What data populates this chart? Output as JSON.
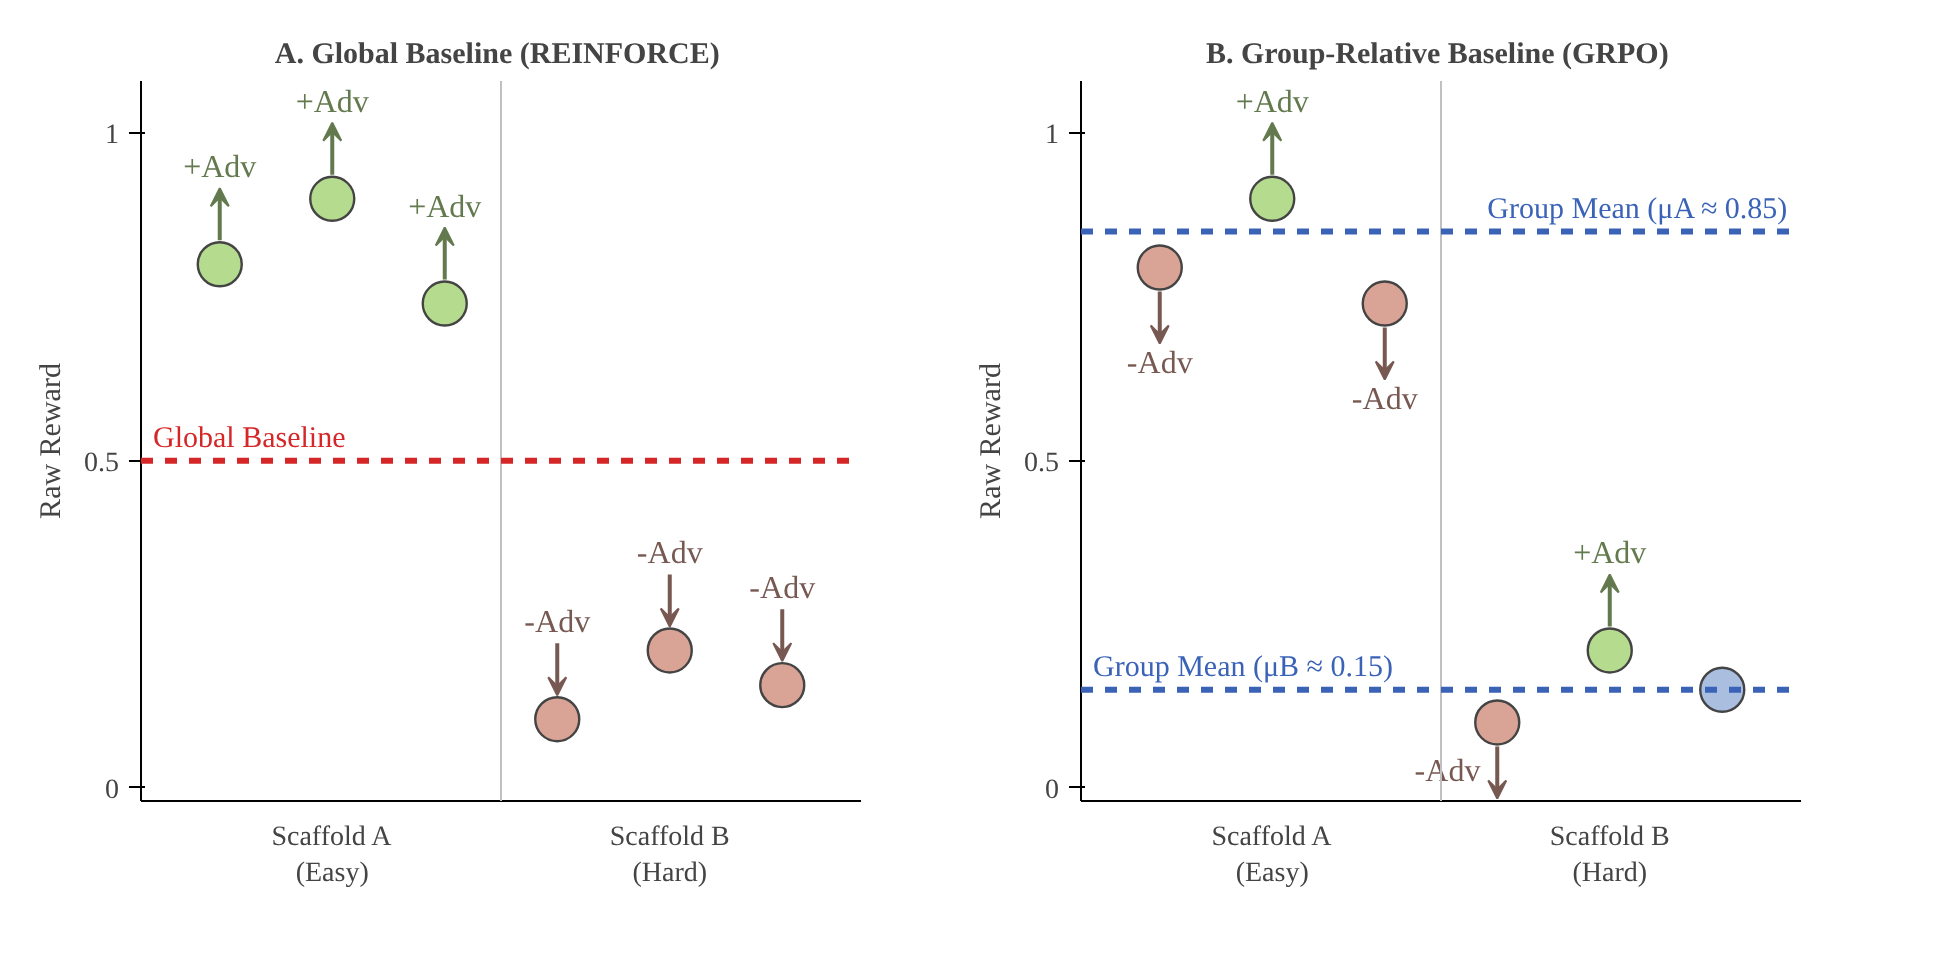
{
  "chart_data": [
    {
      "type": "scatter",
      "title": "A.  Global Baseline (REINFORCE)",
      "ylabel": "Raw Reward",
      "ylim": [
        -0.02,
        1.08
      ],
      "categories": [
        null,
        "Scaffold A\n(Easy)",
        null,
        null,
        "Scaffold B\n(Hard)",
        null
      ],
      "yticks": [
        0,
        0.5,
        1
      ],
      "grid": false,
      "marker": "circle",
      "series": [
        {
          "color": "#b5dc8e",
          "values": [
            0.8,
            0.9,
            0.74,
            null,
            null,
            null
          ],
          "value_labels": [
            "+Adv",
            "+Adv",
            "+Adv",
            null,
            null,
            null
          ]
        },
        {
          "color": "#d9a396",
          "values": [
            null,
            null,
            null,
            0.105,
            0.21,
            0.157
          ],
          "value_labels": [
            null,
            null,
            null,
            "-Adv",
            "-Adv",
            "-Adv"
          ]
        }
      ],
      "ref_lines": [
        {
          "axis": "y",
          "value": 0.5,
          "label": "Global Baseline",
          "color": "#d62728",
          "line_style": "dashed"
        }
      ]
    },
    {
      "type": "scatter",
      "title": "B.  Group-Relative Baseline (GRPO)",
      "ylabel": "Raw Reward",
      "ylim": [
        -0.02,
        1.08
      ],
      "categories": [
        null,
        "Scaffold A\n(Easy)",
        null,
        null,
        "Scaffold B\n(Hard)",
        null
      ],
      "yticks": [
        0,
        0.5,
        1
      ],
      "grid": false,
      "marker": "circle",
      "series": [
        {
          "color": "#b5dc8e",
          "values": [
            null,
            0.9,
            null,
            null,
            0.21,
            null
          ],
          "value_labels": [
            null,
            "+Adv",
            null,
            null,
            "+Adv",
            null
          ]
        },
        {
          "color": "#d9a396",
          "values": [
            0.795,
            null,
            0.74,
            0.1,
            null,
            null
          ],
          "value_labels": [
            "-Adv",
            null,
            "-Adv",
            "-Adv",
            null,
            null
          ]
        },
        {
          "color": "#aabfe0",
          "values": [
            null,
            null,
            null,
            null,
            null,
            0.15
          ]
        }
      ],
      "ref_lines": [
        {
          "axis": "y",
          "value": 0.85,
          "label": "Group Mean (μA ≈ 0.85)",
          "color": "#3a63b8",
          "line_style": "dashed"
        },
        {
          "axis": "y",
          "value": 0.15,
          "label": "Group Mean (μB ≈ 0.15)",
          "color": "#3a63b8",
          "line_style": "dashed"
        }
      ]
    }
  ]
}
